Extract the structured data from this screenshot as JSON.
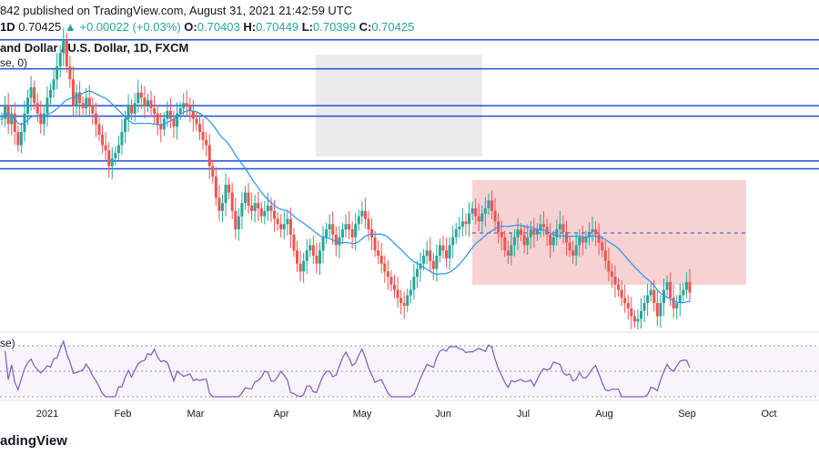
{
  "header": {
    "published": "842 published on TradingView.com, August 31, 2021 21:42:59 UTC",
    "interval": "1D",
    "last": "0.70425",
    "change": "▲ +0.00022 (+0.03%)",
    "open_label": "O:",
    "open": "0.70403",
    "high_label": "H:",
    "high": "0.70449",
    "low_label": "L:",
    "low": "0.70399",
    "close_label": "C:",
    "close": "0.70425"
  },
  "title": "and Dollar / U.S. Dollar, 1D, FXCM",
  "ma_legend": "se, 0)",
  "rsi_legend": "se)",
  "brand": "adingView",
  "colors": {
    "up": "#26a69a",
    "down": "#ef5350",
    "ma": "#2196f3",
    "rsi": "#7e57c2",
    "line": "#1e50d6",
    "grey_zone": "#e6e6e6",
    "red_zone": "#f4caca"
  },
  "chart_data": {
    "type": "candlestick",
    "title": "and Dollar / U.S. Dollar, 1D, FXCM",
    "x_ticks": [
      "2021",
      "Feb",
      "Mar",
      "Apr",
      "May",
      "Jun",
      "Jul",
      "Aug",
      "Sep",
      "Oct"
    ],
    "close_series": [
      0.77,
      0.775,
      0.768,
      0.772,
      0.765,
      0.76,
      0.765,
      0.772,
      0.778,
      0.782,
      0.776,
      0.772,
      0.768,
      0.772,
      0.778,
      0.781,
      0.785,
      0.79,
      0.795,
      0.8,
      0.79,
      0.785,
      0.775,
      0.78,
      0.776,
      0.774,
      0.778,
      0.775,
      0.772,
      0.768,
      0.764,
      0.76,
      0.758,
      0.752,
      0.755,
      0.757,
      0.76,
      0.765,
      0.77,
      0.775,
      0.772,
      0.776,
      0.78,
      0.778,
      0.775,
      0.777,
      0.774,
      0.772,
      0.768,
      0.766,
      0.77,
      0.773,
      0.77,
      0.767,
      0.772,
      0.774,
      0.776,
      0.775,
      0.773,
      0.77,
      0.768,
      0.765,
      0.762,
      0.76,
      0.752,
      0.748,
      0.74,
      0.735,
      0.738,
      0.745,
      0.742,
      0.735,
      0.728,
      0.733,
      0.738,
      0.742,
      0.737,
      0.735,
      0.738,
      0.736,
      0.733,
      0.735,
      0.737,
      0.735,
      0.732,
      0.73,
      0.728,
      0.73,
      0.732,
      0.726,
      0.72,
      0.715,
      0.712,
      0.716,
      0.72,
      0.722,
      0.718,
      0.715,
      0.72,
      0.725,
      0.728,
      0.73,
      0.726,
      0.722,
      0.725,
      0.728,
      0.73,
      0.728,
      0.725,
      0.73,
      0.733,
      0.735,
      0.732,
      0.728,
      0.725,
      0.72,
      0.718,
      0.715,
      0.712,
      0.71,
      0.707,
      0.705,
      0.702,
      0.7,
      0.699,
      0.703,
      0.705,
      0.71,
      0.713,
      0.715,
      0.718,
      0.72,
      0.716,
      0.713,
      0.718,
      0.722,
      0.72,
      0.717,
      0.722,
      0.725,
      0.728,
      0.729,
      0.731,
      0.73,
      0.734,
      0.736,
      0.733,
      0.731,
      0.734,
      0.736,
      0.739,
      0.735,
      0.731,
      0.727,
      0.725,
      0.72,
      0.718,
      0.722,
      0.725,
      0.728,
      0.726,
      0.722,
      0.725,
      0.728,
      0.726,
      0.728,
      0.73,
      0.729,
      0.726,
      0.722,
      0.725,
      0.728,
      0.73,
      0.727,
      0.723,
      0.72,
      0.718,
      0.722,
      0.725,
      0.723,
      0.725,
      0.727,
      0.728,
      0.726,
      0.723,
      0.72,
      0.716,
      0.712,
      0.71,
      0.707,
      0.705,
      0.702,
      0.7,
      0.698,
      0.695,
      0.693,
      0.694,
      0.697,
      0.7,
      0.703,
      0.705,
      0.7,
      0.695,
      0.7,
      0.705,
      0.708,
      0.702,
      0.698,
      0.7,
      0.703,
      0.705,
      0.708,
      0.704
    ],
    "horizontal_levels": [
      0.8,
      0.789,
      0.775,
      0.771,
      0.754,
      0.751
    ],
    "zones": [
      "grey: Apr–Jun",
      "red: Jun–Sep"
    ]
  }
}
